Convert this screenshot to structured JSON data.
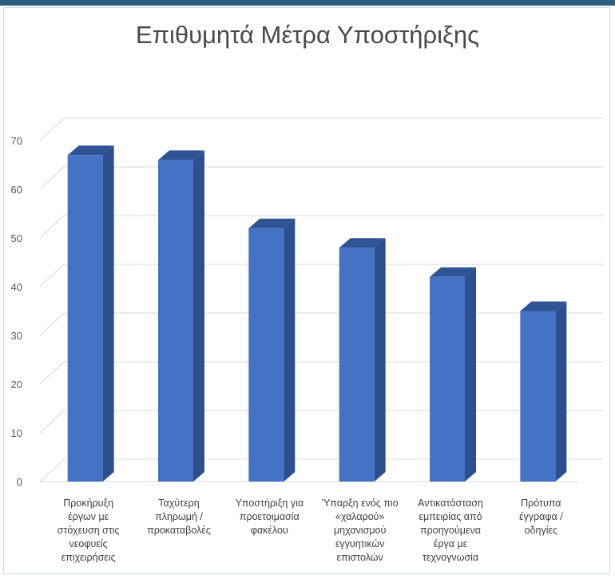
{
  "chart_data": {
    "type": "bar",
    "title": "Επιθυμητά Μέτρα Υποστήριξης",
    "xlabel": "",
    "ylabel": "",
    "ylim": [
      0,
      70
    ],
    "yticks": [
      0,
      10,
      20,
      30,
      40,
      50,
      60,
      70
    ],
    "grid": true,
    "legend": "none",
    "three_d": true,
    "colors": {
      "bar_front": "#4472c4",
      "bar_side": "#2e4f8f",
      "bar_top": "#2f5496",
      "grid": "#d9d9d9",
      "frame_border": "#c9d9e6",
      "top_bar": "#2b5f82"
    },
    "categories": [
      [
        "Προκήρυξη",
        "έργων με",
        "στόχευση στις",
        "νεοφυείς",
        "επιχειρήσεις"
      ],
      [
        "Ταχύτερη",
        "πληρωμή /",
        "προκαταβολές"
      ],
      [
        "Υποστήριξη για",
        "προετοιμασία",
        "φακέλου"
      ],
      [
        "Ύπαρξη ενός πιο",
        "«χαλαρού»",
        "μηχανισμού",
        "εγγυητικών",
        "επιστολών"
      ],
      [
        "Αντικατάσταση",
        "εμπειρίας από",
        "προηγούμενα",
        "έργα με",
        "τεχνογνωσία"
      ],
      [
        "Πρότυπα",
        "έγγραφα /",
        "οδηγίες"
      ]
    ],
    "values": [
      67,
      66,
      52,
      48,
      42,
      35
    ]
  }
}
